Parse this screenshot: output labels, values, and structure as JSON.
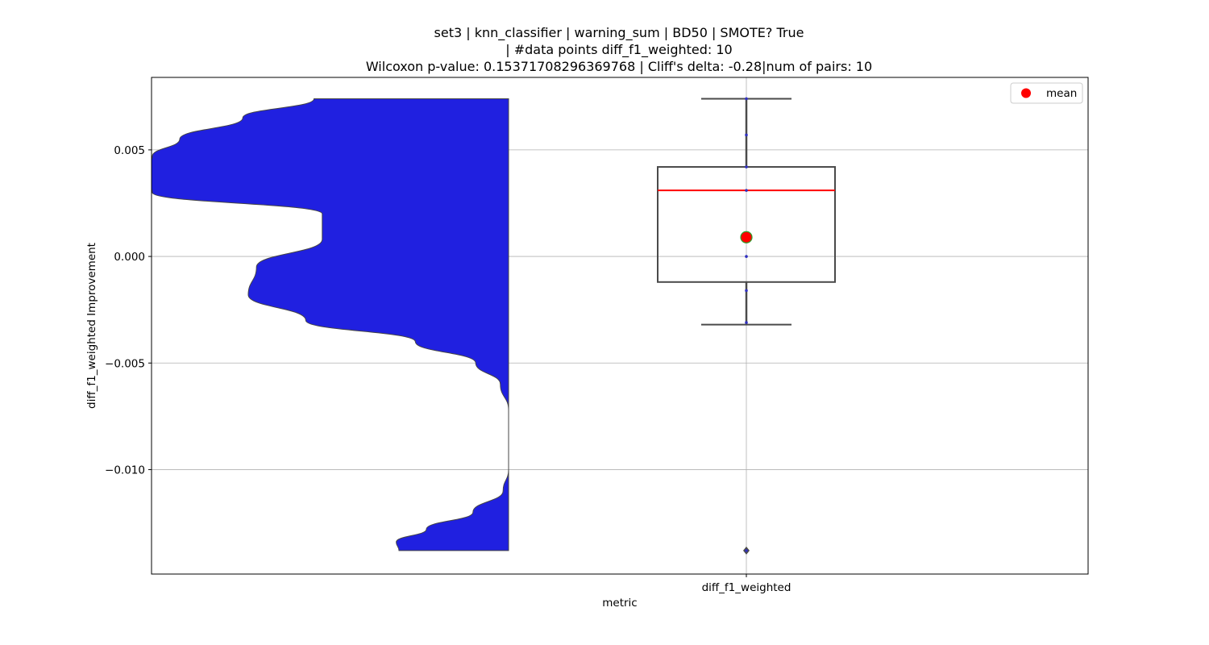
{
  "chart_data": {
    "type": "violin+box",
    "title_lines": [
      "set3 | knn_classifier | warning_sum | BD50 | SMOTE? True",
      "| #data points diff_f1_weighted: 10",
      "Wilcoxon p-value: 0.15371708296369768 | Cliff's delta: -0.28|num of pairs: 10"
    ],
    "xlabel": "metric",
    "ylabel": "diff_f1_weighted Improvement",
    "categories": [
      "diff_f1_weighted"
    ],
    "ylim": [
      -0.0149,
      0.0084
    ],
    "yticks": [
      0.005,
      0.0,
      -0.005,
      -0.01
    ],
    "ytick_labels": [
      "0.005",
      "0.000",
      "−0.005",
      "−0.010"
    ],
    "grid": true,
    "legend": {
      "position": "top-right",
      "entries": [
        {
          "label": "mean",
          "color": "#ff0000"
        }
      ]
    },
    "colors": {
      "violin_fill": "#2020e0",
      "box_edge": "#4a4a4a",
      "median_line": "#ff0000",
      "mean_marker": "#ff0000",
      "mean_marker_edge": "#2ca02c",
      "grid": "#b0b0b0"
    },
    "violin": {
      "side": "left-half",
      "density_profile": [
        {
          "y": 0.0074,
          "width": 0.71
        },
        {
          "y": 0.0065,
          "width": 0.97
        },
        {
          "y": 0.0055,
          "width": 1.2
        },
        {
          "y": 0.0047,
          "width": 1.3
        },
        {
          "y": 0.0039,
          "width": 1.35
        },
        {
          "y": 0.003,
          "width": 1.3
        },
        {
          "y": 0.002,
          "width": 0.68
        },
        {
          "y": 0.0008,
          "width": 0.68
        },
        {
          "y": -0.0005,
          "width": 0.92
        },
        {
          "y": -0.0018,
          "width": 0.95
        },
        {
          "y": -0.003,
          "width": 0.74
        },
        {
          "y": -0.004,
          "width": 0.34
        },
        {
          "y": -0.005,
          "width": 0.12
        },
        {
          "y": -0.006,
          "width": 0.03
        },
        {
          "y": -0.0072,
          "width": 0.0
        },
        {
          "y": -0.0086,
          "width": 0.0
        },
        {
          "y": -0.01,
          "width": 0.0
        },
        {
          "y": -0.011,
          "width": 0.02
        },
        {
          "y": -0.012,
          "width": 0.13
        },
        {
          "y": -0.0128,
          "width": 0.3
        },
        {
          "y": -0.0134,
          "width": 0.41
        },
        {
          "y": -0.0138,
          "width": 0.4
        }
      ],
      "ymin": -0.0138,
      "ymax": 0.0074
    },
    "box": {
      "whisker_low": -0.0032,
      "q1": -0.0012,
      "median": 0.0031,
      "q3": 0.0042,
      "whisker_high": 0.0074,
      "mean": 0.0009,
      "outliers": [
        -0.0138
      ]
    },
    "points": [
      0.0074,
      0.0057,
      0.0042,
      0.0031,
      0.0,
      -0.0016,
      -0.0031,
      -0.0138
    ]
  }
}
